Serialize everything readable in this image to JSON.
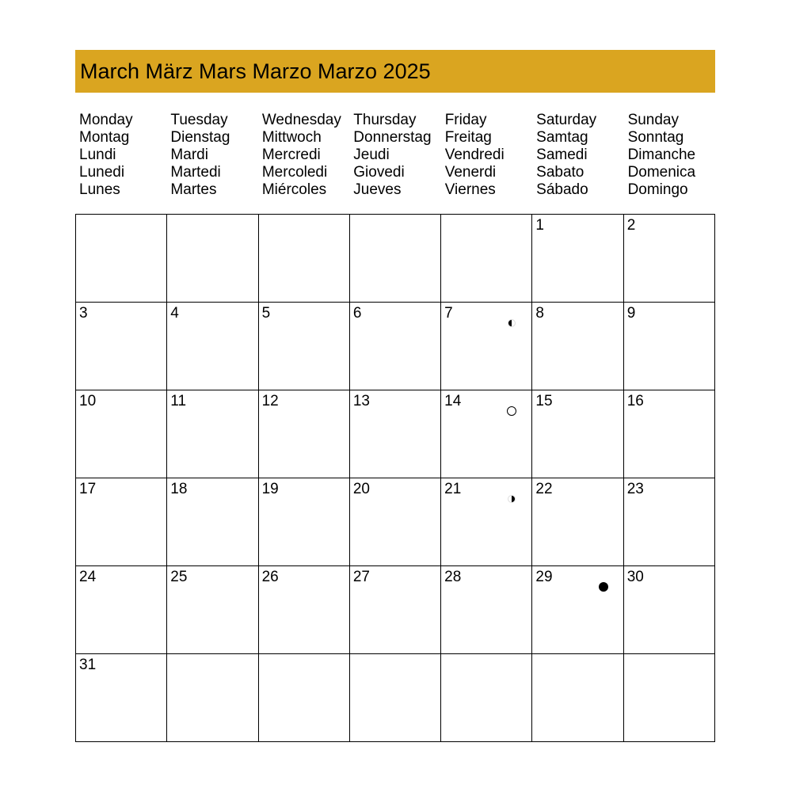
{
  "header": {
    "title": "March März Mars Marzo Marzo 2025",
    "color": "#DAA520"
  },
  "weekdays": [
    [
      "Monday",
      "Montag",
      "Lundi",
      "Lunedi",
      "Lunes"
    ],
    [
      "Tuesday",
      "Dienstag",
      "Mardi",
      "Martedi",
      "Martes"
    ],
    [
      "Wednesday",
      "Mittwoch",
      "Mercredi",
      "Mercoledi",
      "Miércoles"
    ],
    [
      "Thursday",
      "Donnerstag",
      "Jeudi",
      "Giovedi",
      "Jueves"
    ],
    [
      "Friday",
      "Freitag",
      "Vendredi",
      "Venerdi",
      "Viernes"
    ],
    [
      "Saturday",
      "Samtag",
      "Samedi",
      "Sabato",
      "Sábado"
    ],
    [
      "Sunday",
      "Sonntag",
      "Dimanche",
      "Domenica",
      "Domingo"
    ]
  ],
  "days": [
    "",
    "",
    "",
    "",
    "",
    "1",
    "2",
    "3",
    "4",
    "5",
    "6",
    "7",
    "8",
    "9",
    "10",
    "11",
    "12",
    "13",
    "14",
    "15",
    "16",
    "17",
    "18",
    "19",
    "20",
    "21",
    "22",
    "23",
    "24",
    "25",
    "26",
    "27",
    "28",
    "29",
    "30",
    "31",
    "",
    "",
    "",
    "",
    "",
    ""
  ],
  "moon_phases": {
    "7": "first-quarter",
    "14": "full-moon",
    "21": "last-quarter",
    "29": "new-moon"
  }
}
